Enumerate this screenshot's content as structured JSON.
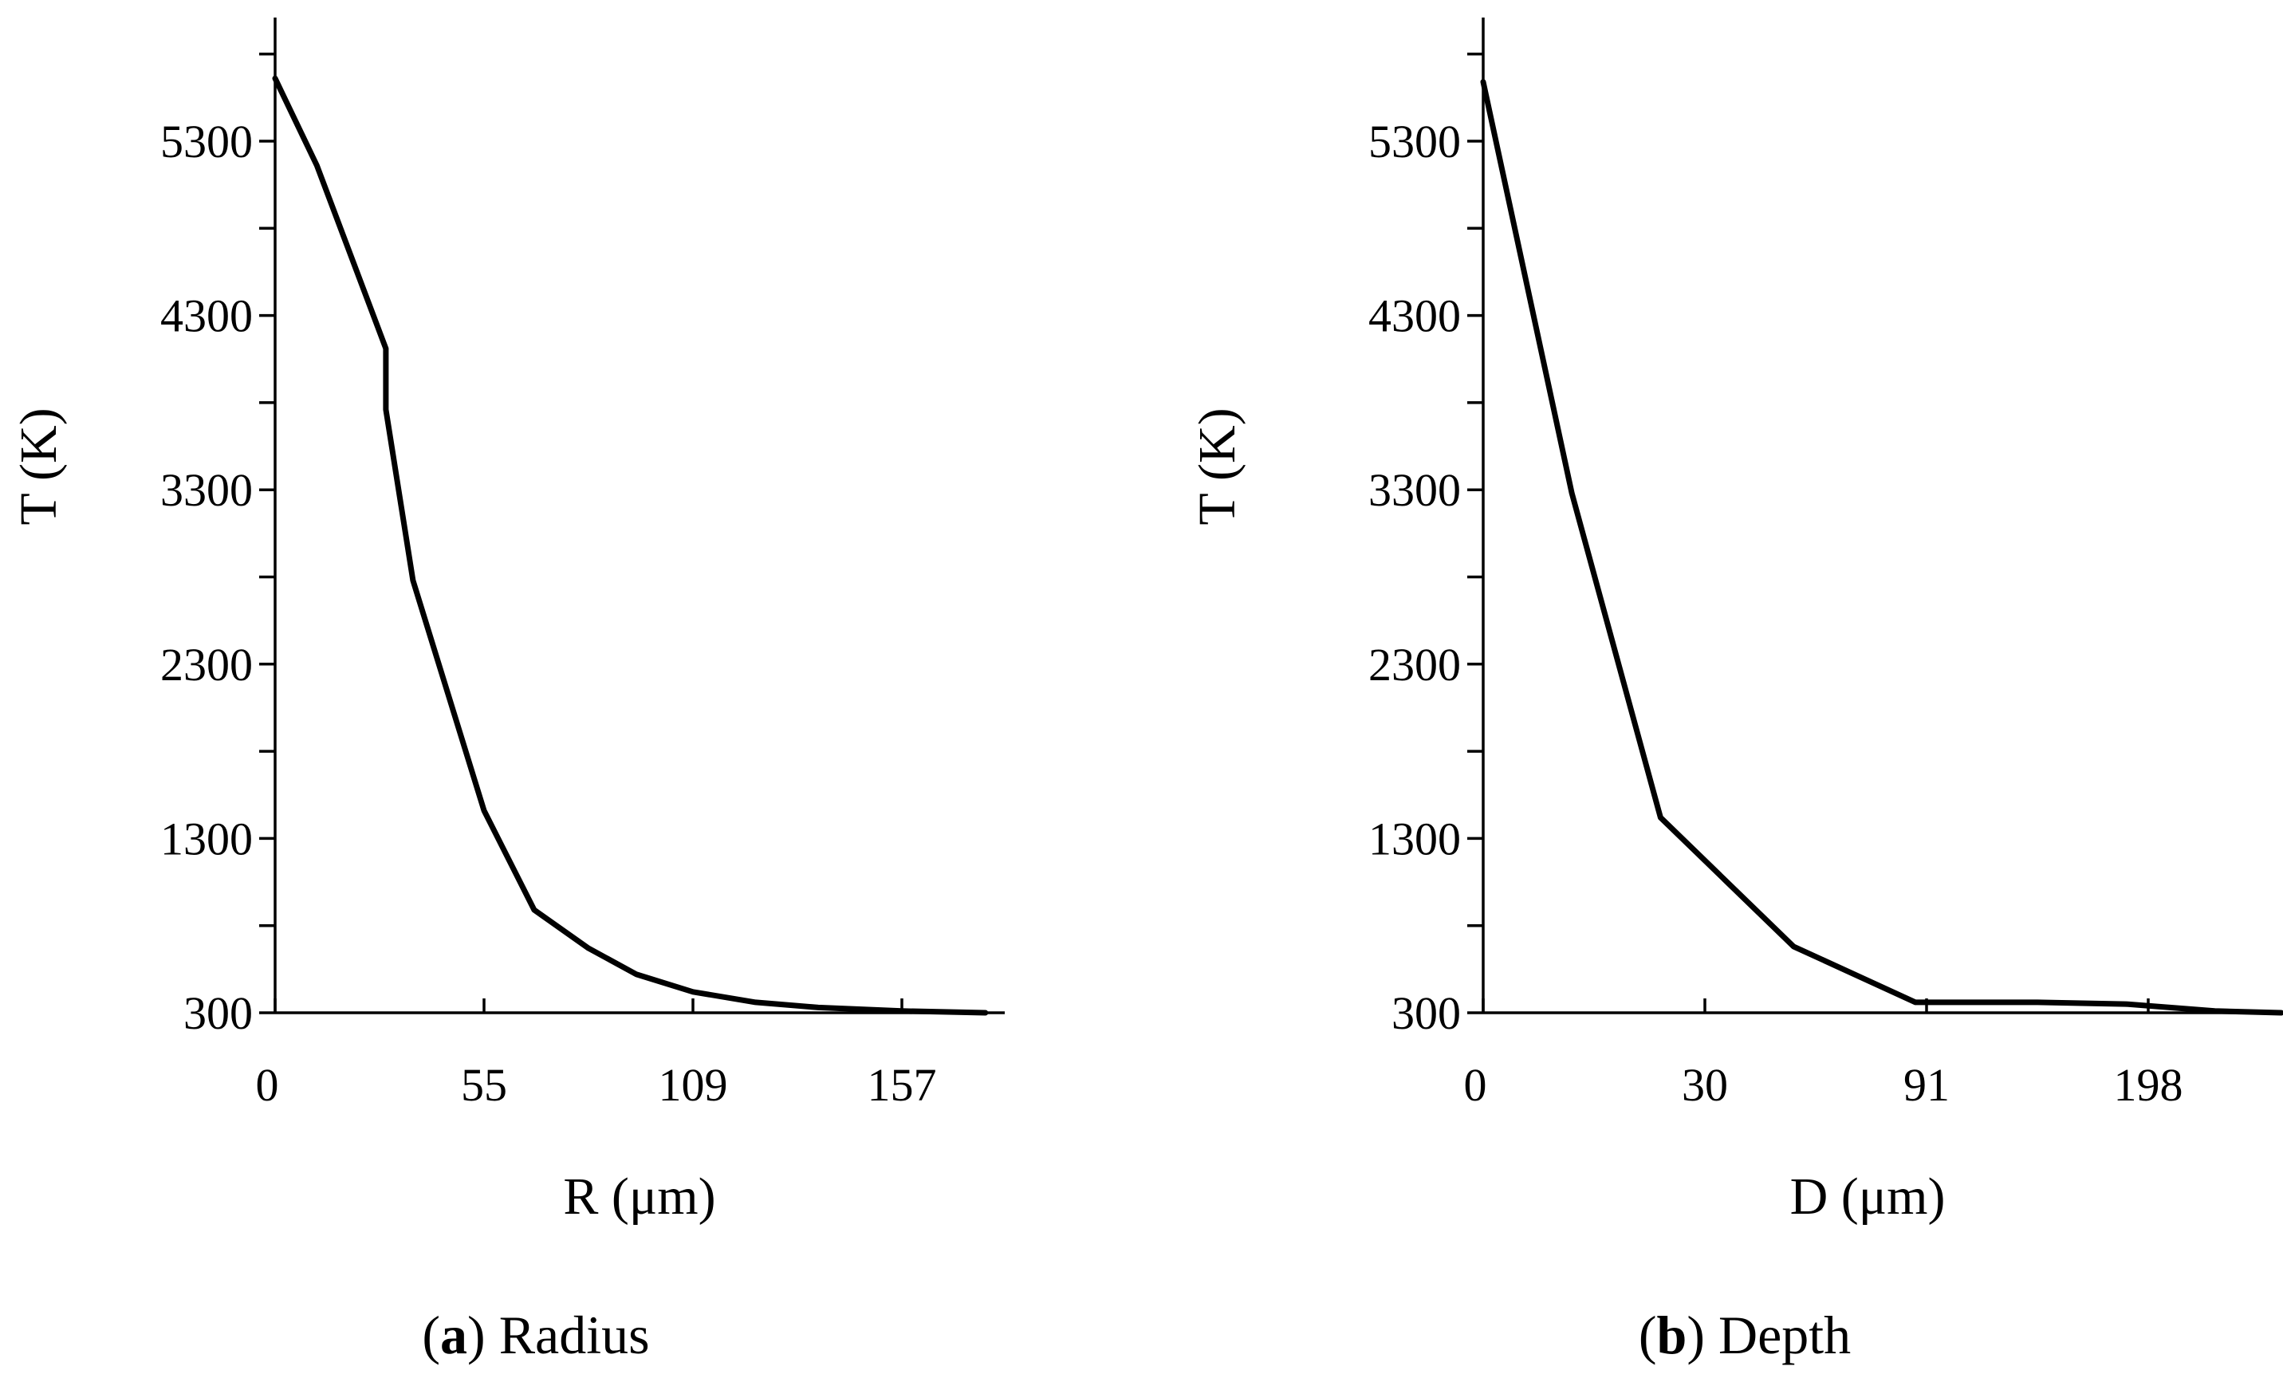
{
  "chart_data": [
    {
      "type": "line",
      "panel_letter": "a",
      "caption": "Radius",
      "xlabel": "R (μm)",
      "ylabel": "T (K)",
      "x_tick_labels": [
        "0",
        "55",
        "109",
        "157"
      ],
      "y_ticks": [
        300,
        1300,
        2300,
        3300,
        4300,
        5300
      ],
      "ylim": [
        300,
        6000
      ],
      "grid": false,
      "series": [
        {
          "x_position": [
            0,
            0.2,
            0.53,
            0.53,
            0.66,
            1.0,
            1.24,
            1.5,
            1.73,
            2.0,
            2.3,
            2.6,
            3.0,
            3.4
          ],
          "values": [
            5660,
            5160,
            4110,
            3760,
            2780,
            1460,
            890,
            670,
            520,
            420,
            360,
            330,
            310,
            300
          ]
        }
      ]
    },
    {
      "type": "line",
      "panel_letter": "b",
      "caption": "Depth",
      "xlabel": "D (μm)",
      "ylabel": "T (K)",
      "x_tick_labels": [
        "0",
        "30",
        "91",
        "198"
      ],
      "y_ticks": [
        300,
        1300,
        2300,
        3300,
        4300,
        5300
      ],
      "ylim": [
        300,
        6000
      ],
      "grid": false,
      "series": [
        {
          "x_position": [
            0,
            0.4,
            0.8,
            1.4,
            1.95,
            2.5,
            2.9,
            3.3,
            3.6
          ],
          "values": [
            5640,
            3280,
            1420,
            680,
            360,
            360,
            350,
            310,
            300
          ]
        }
      ]
    }
  ]
}
